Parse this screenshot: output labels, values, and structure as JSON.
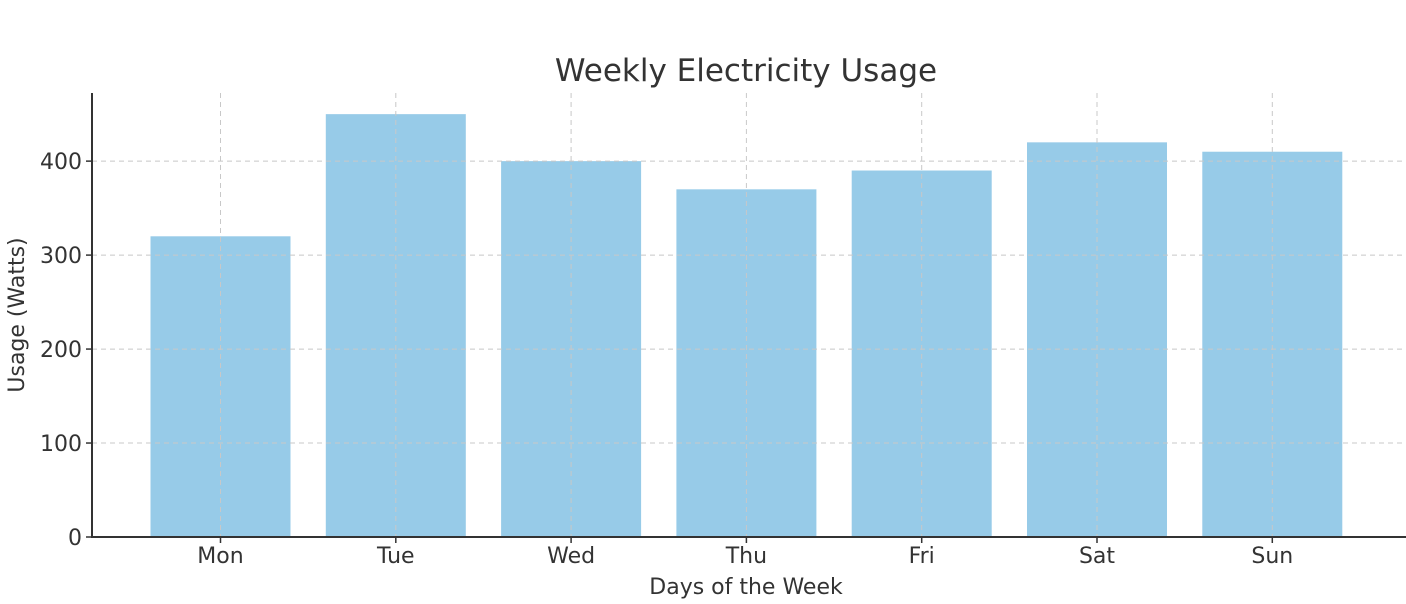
{
  "chart_data": {
    "type": "bar",
    "title": "Weekly Electricity Usage",
    "xlabel": "Days of the Week",
    "ylabel": "Usage (Watts)",
    "categories": [
      "Mon",
      "Tue",
      "Wed",
      "Thu",
      "Fri",
      "Sat",
      "Sun"
    ],
    "values": [
      320,
      450,
      400,
      370,
      390,
      420,
      410
    ],
    "ylim": [
      0,
      472.5
    ],
    "yticks": [
      0,
      100,
      200,
      300,
      400
    ],
    "grid": true,
    "bar_color": "#97cbe8"
  }
}
